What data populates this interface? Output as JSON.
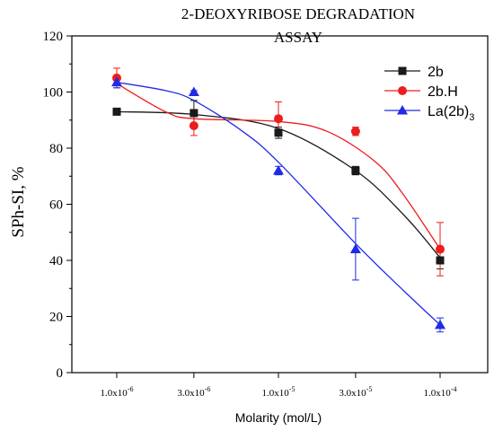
{
  "chart_data": {
    "type": "scatter",
    "title": "2-DEOXYRIBOSE DEGRADATION",
    "title_line2": "ASSAY",
    "xlabel": "Molarity (mol/L)",
    "ylabel": "SPh-SI, %",
    "x_scale": "log",
    "x": [
      1e-06,
      3e-06,
      1e-05,
      3e-05,
      0.0001
    ],
    "xtick_labels": [
      {
        "base": "1.0x10",
        "exp": "-6"
      },
      {
        "base": "3.0x10",
        "exp": "-6"
      },
      {
        "base": "1.0x10",
        "exp": "-5"
      },
      {
        "base": "3.0x10",
        "exp": "-5"
      },
      {
        "base": "1.0x10",
        "exp": "-4"
      }
    ],
    "ylim": [
      0,
      120
    ],
    "yticks": [
      0,
      20,
      40,
      60,
      80,
      100,
      120
    ],
    "legend_position": "top-right",
    "series": [
      {
        "name": "2b",
        "legend_label": "2b",
        "color": "#1a1a1a",
        "marker": "square",
        "values": [
          93,
          92.5,
          85.5,
          72,
          40
        ],
        "errors": [
          0.5,
          4.5,
          2,
          1.5,
          3
        ],
        "fit": [
          [
            1e-06,
            93
          ],
          [
            3e-06,
            92
          ],
          [
            1e-05,
            87
          ],
          [
            3e-05,
            72
          ],
          [
            6e-05,
            56
          ],
          [
            0.0001,
            41
          ]
        ]
      },
      {
        "name": "2b.H",
        "legend_label": "2b.H",
        "color": "#ee1c1c",
        "marker": "circle",
        "values": [
          105,
          88,
          90.5,
          86,
          44
        ],
        "errors": [
          3.5,
          3.5,
          6,
          1.5,
          9.5
        ],
        "fit": [
          [
            1e-06,
            103
          ],
          [
            2e-06,
            93
          ],
          [
            3e-06,
            90.5
          ],
          [
            1e-05,
            89.5
          ],
          [
            2e-05,
            86
          ],
          [
            4e-05,
            75
          ],
          [
            6e-05,
            63
          ],
          [
            0.0001,
            44
          ]
        ]
      },
      {
        "name": "La(2b)3",
        "legend_label": "La(2b)",
        "legend_subscript": "3",
        "color": "#1f2be6",
        "marker": "triangle",
        "values": [
          103.5,
          100,
          72,
          44,
          17
        ],
        "errors": [
          2,
          0.5,
          1.5,
          11,
          2.5
        ],
        "fit": [
          [
            1e-06,
            103.5
          ],
          [
            2e-06,
            100.5
          ],
          [
            3e-06,
            97
          ],
          [
            6e-06,
            86
          ],
          [
            1e-05,
            75
          ],
          [
            3e-05,
            46
          ],
          [
            6e-05,
            29
          ],
          [
            0.0001,
            17
          ]
        ]
      }
    ]
  }
}
